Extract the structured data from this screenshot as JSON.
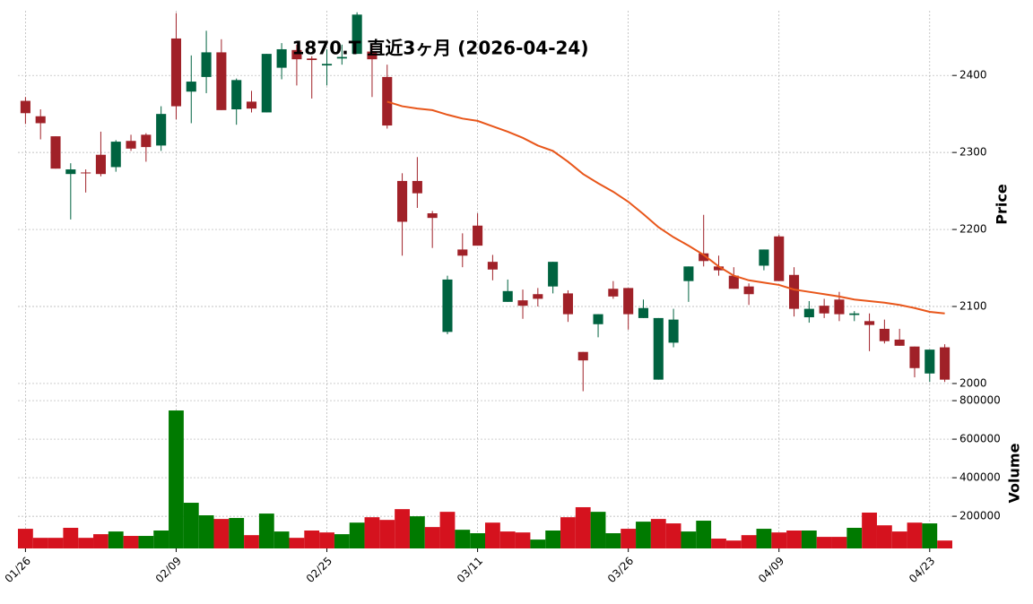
{
  "chart_data": {
    "type": "candlestick",
    "title": "1870.T 直近3ヶ月 (2026-04-24)",
    "categories": [
      "01/26",
      null,
      null,
      null,
      null,
      null,
      null,
      null,
      null,
      null,
      "02/09",
      null,
      null,
      null,
      null,
      null,
      null,
      null,
      null,
      null,
      "02/25",
      null,
      null,
      null,
      null,
      null,
      null,
      null,
      null,
      null,
      "03/11",
      null,
      null,
      null,
      null,
      null,
      null,
      null,
      null,
      null,
      "03/26",
      null,
      null,
      null,
      null,
      null,
      null,
      null,
      null,
      null,
      "04/09",
      null,
      null,
      null,
      null,
      null,
      null,
      null,
      null,
      null,
      "04/23",
      null
    ],
    "open": [
      2367,
      2347,
      2321,
      2272,
      2274,
      2297,
      2281,
      2315,
      2323,
      2309,
      2448,
      2379,
      2398,
      2430,
      2356,
      2366,
      2352,
      2410,
      2433,
      2422,
      2413,
      2422,
      2428,
      2431,
      2398,
      2263,
      2263,
      2221,
      2067,
      2174,
      2205,
      2158,
      2106,
      2108,
      2116,
      2126,
      2117,
      2041,
      2077,
      2123,
      2124,
      2085,
      2005,
      2053,
      2133,
      2169,
      2152,
      2140,
      2126,
      2153,
      2191,
      2141,
      2086,
      2101,
      2109,
      2089,
      2081,
      2071,
      2057,
      2048,
      2013,
      2047
    ],
    "high": [
      2372,
      2356,
      2321,
      2286,
      2278,
      2327,
      2316,
      2323,
      2325,
      2360,
      2481,
      2426,
      2458,
      2447,
      2396,
      2380,
      2428,
      2442,
      2440,
      2425,
      2434,
      2440,
      2482,
      2440,
      2414,
      2273,
      2294,
      2224,
      2140,
      2195,
      2221,
      2167,
      2135,
      2122,
      2124,
      2158,
      2121,
      2041,
      2090,
      2133,
      2124,
      2109,
      2085,
      2097,
      2152,
      2219,
      2166,
      2151,
      2130,
      2174,
      2193,
      2151,
      2107,
      2110,
      2119,
      2094,
      2091,
      2083,
      2071,
      2048,
      2044,
      2051
    ],
    "low": [
      2337,
      2317,
      2279,
      2213,
      2248,
      2269,
      2275,
      2302,
      2288,
      2302,
      2343,
      2338,
      2377,
      2355,
      2336,
      2352,
      2352,
      2395,
      2387,
      2370,
      2387,
      2414,
      2428,
      2372,
      2331,
      2166,
      2228,
      2176,
      2064,
      2151,
      2179,
      2134,
      2106,
      2084,
      2100,
      2117,
      2080,
      1990,
      2060,
      2110,
      2070,
      2085,
      2005,
      2047,
      2106,
      2152,
      2140,
      2123,
      2102,
      2147,
      2133,
      2087,
      2079,
      2085,
      2081,
      2081,
      2042,
      2052,
      2049,
      2008,
      2002,
      2002
    ],
    "close": [
      2351,
      2338,
      2279,
      2278,
      2273,
      2272,
      2314,
      2305,
      2307,
      2350,
      2360,
      2392,
      2430,
      2355,
      2394,
      2357,
      2428,
      2434,
      2421,
      2420,
      2415,
      2424,
      2479,
      2421,
      2335,
      2210,
      2247,
      2215,
      2135,
      2166,
      2179,
      2148,
      2120,
      2101,
      2110,
      2158,
      2090,
      2030,
      2090,
      2113,
      2090,
      2098,
      2085,
      2083,
      2152,
      2159,
      2147,
      2123,
      2116,
      2174,
      2133,
      2097,
      2097,
      2091,
      2090,
      2091,
      2076,
      2055,
      2049,
      2020,
      2044,
      2005
    ],
    "up_color": "#006340",
    "down_color": "#a02128",
    "ma": {
      "color": "#e8561a",
      "values": [
        null,
        null,
        null,
        null,
        null,
        null,
        null,
        null,
        null,
        null,
        null,
        null,
        null,
        null,
        null,
        null,
        null,
        null,
        null,
        null,
        null,
        null,
        null,
        null,
        2366,
        2360,
        2357,
        2355,
        2349,
        2344,
        2341,
        2334,
        2327,
        2319,
        2309,
        2302,
        2288,
        2272,
        2260,
        2249,
        2236,
        2220,
        2203,
        2190,
        2179,
        2167,
        2152,
        2140,
        2134,
        2131,
        2128,
        2122,
        2119,
        2116,
        2113,
        2109,
        2107,
        2105,
        2102,
        2098,
        2093,
        2091
      ]
    },
    "ylabel": "Price",
    "ylim": [
      1979,
      2484
    ],
    "yticks": [
      2000,
      2100,
      2200,
      2300,
      2400
    ],
    "xlim": [
      -0.5,
      61.5
    ],
    "grid": true,
    "volume": {
      "ylabel": "Volume",
      "up_color": "#007a00",
      "down_color": "#d5121e",
      "ylim": [
        33000,
        805000
      ],
      "yticks": [
        200000,
        400000,
        600000,
        800000
      ],
      "values": [
        135000,
        88000,
        88000,
        140000,
        88000,
        107000,
        121000,
        98000,
        98000,
        126000,
        749000,
        270000,
        205000,
        186000,
        191000,
        102000,
        214000,
        121000,
        88000,
        126000,
        116000,
        107000,
        167000,
        195000,
        181000,
        237000,
        200000,
        144000,
        223000,
        130000,
        112000,
        167000,
        121000,
        116000,
        79000,
        126000,
        195000,
        247000,
        223000,
        112000,
        135000,
        172000,
        186000,
        163000,
        121000,
        177000,
        84000,
        74000,
        102000,
        135000,
        116000,
        126000,
        126000,
        93000,
        93000,
        140000,
        219000,
        153000,
        121000,
        167000,
        163000,
        74000
      ]
    }
  }
}
